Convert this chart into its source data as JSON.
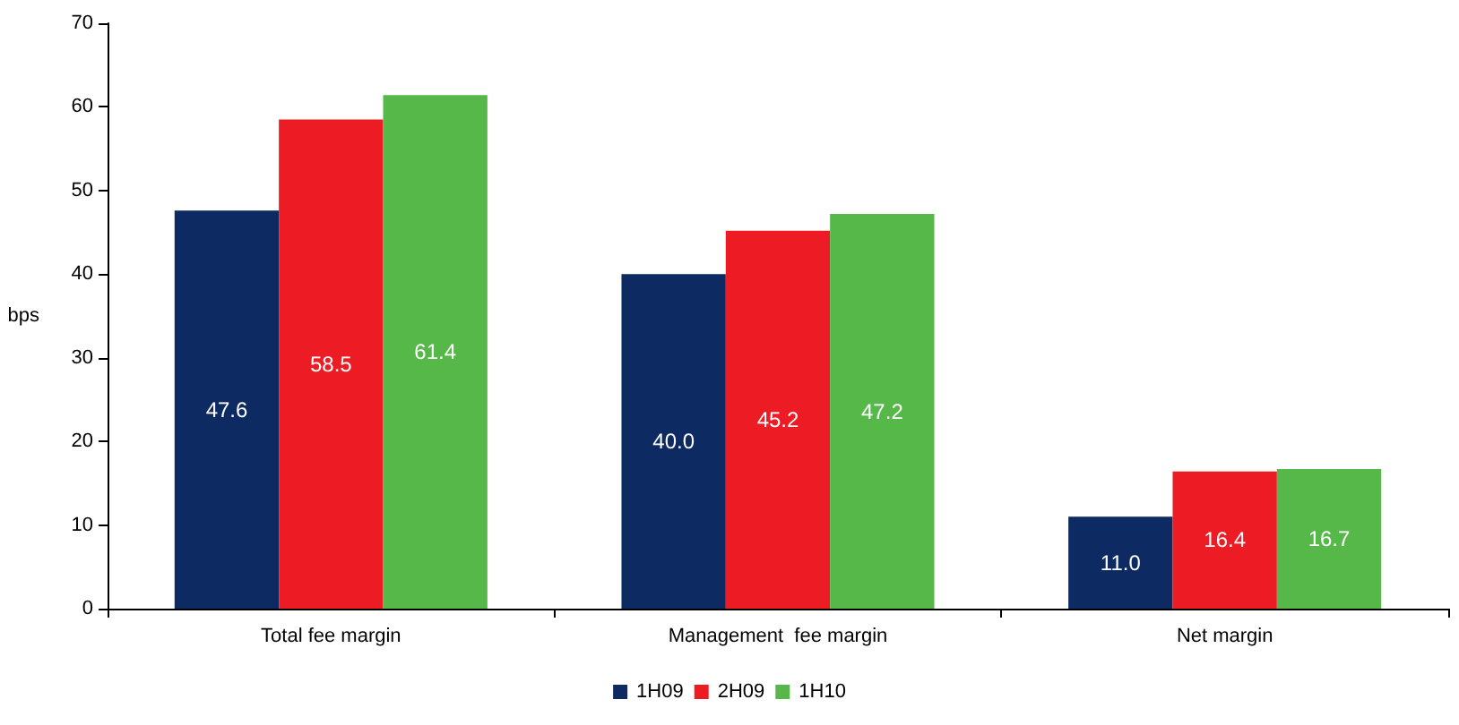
{
  "chart_data": {
    "type": "bar",
    "ylabel": "bps",
    "categories": [
      "Total fee margin",
      "Management  fee margin",
      "Net margin"
    ],
    "series": [
      {
        "name": "1H09",
        "color": "#0d2a63",
        "values": [
          47.6,
          40.0,
          11.0
        ],
        "value_labels": [
          "47.6",
          "40.0",
          "11.0"
        ]
      },
      {
        "name": "2H09",
        "color": "#ed1c24",
        "values": [
          58.5,
          45.2,
          16.4
        ],
        "value_labels": [
          "58.5",
          "45.2",
          "16.4"
        ]
      },
      {
        "name": "1H10",
        "color": "#55b848",
        "values": [
          61.4,
          47.2,
          16.7
        ],
        "value_labels": [
          "61.4",
          "47.2",
          "16.7"
        ]
      }
    ],
    "ylim": [
      0,
      70
    ],
    "yticks": [
      0,
      10,
      20,
      30,
      40,
      50,
      60,
      70
    ],
    "legend": "bottom",
    "grid": false
  }
}
